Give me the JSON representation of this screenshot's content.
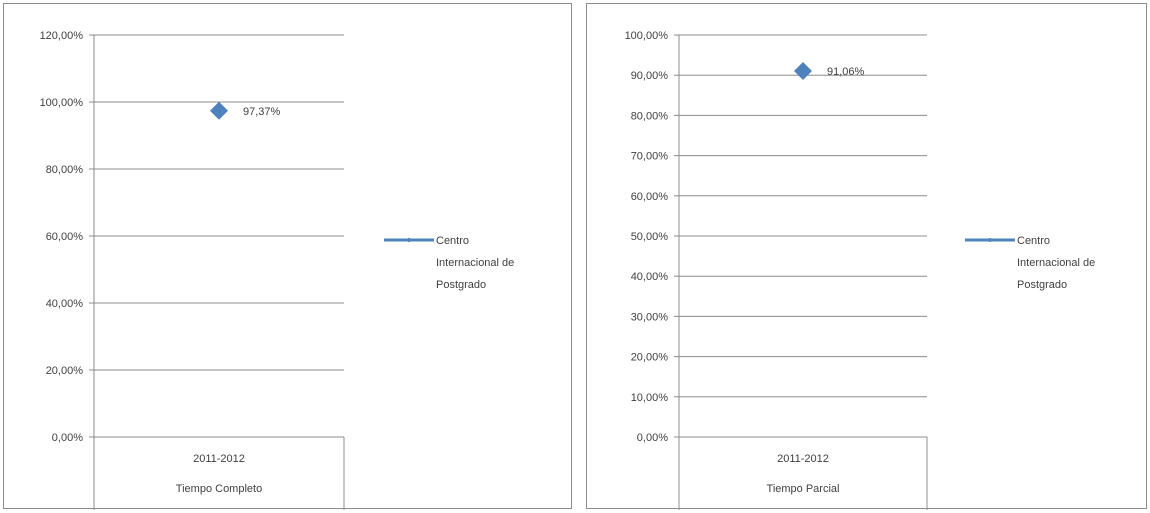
{
  "chart_data": [
    {
      "type": "line",
      "categories": [
        [
          "2011-2012",
          "Tiempo Completo"
        ]
      ],
      "series": [
        {
          "name": "Centro Internacional de Postgrado",
          "values": [
            97.37
          ],
          "labels": [
            "97,37%"
          ]
        }
      ],
      "ylim": [
        0,
        120
      ],
      "yticks": [
        0,
        20,
        40,
        60,
        80,
        100,
        120
      ],
      "ytick_labels": [
        "0,00%",
        "20,00%",
        "40,00%",
        "60,00%",
        "80,00%",
        "100,00%",
        "120,00%"
      ],
      "legend_lines": [
        "Centro",
        "Internacional de",
        "Postgrado"
      ],
      "legend_position": "right",
      "grid": true,
      "marker": "diamond",
      "color": "#4f81bd"
    },
    {
      "type": "line",
      "categories": [
        [
          "2011-2012",
          "Tiempo Parcial"
        ]
      ],
      "series": [
        {
          "name": "Centro Internacional de Postgrado",
          "values": [
            91.06
          ],
          "labels": [
            "91,06%"
          ]
        }
      ],
      "ylim": [
        0,
        100
      ],
      "yticks": [
        0,
        10,
        20,
        30,
        40,
        50,
        60,
        70,
        80,
        90,
        100
      ],
      "ytick_labels": [
        "0,00%",
        "10,00%",
        "20,00%",
        "30,00%",
        "40,00%",
        "50,00%",
        "60,00%",
        "70,00%",
        "80,00%",
        "90,00%",
        "100,00%"
      ],
      "legend_lines": [
        "Centro",
        "Internacional de",
        "Postgrado"
      ],
      "legend_position": "right",
      "grid": true,
      "marker": "diamond",
      "color": "#4f81bd"
    }
  ]
}
